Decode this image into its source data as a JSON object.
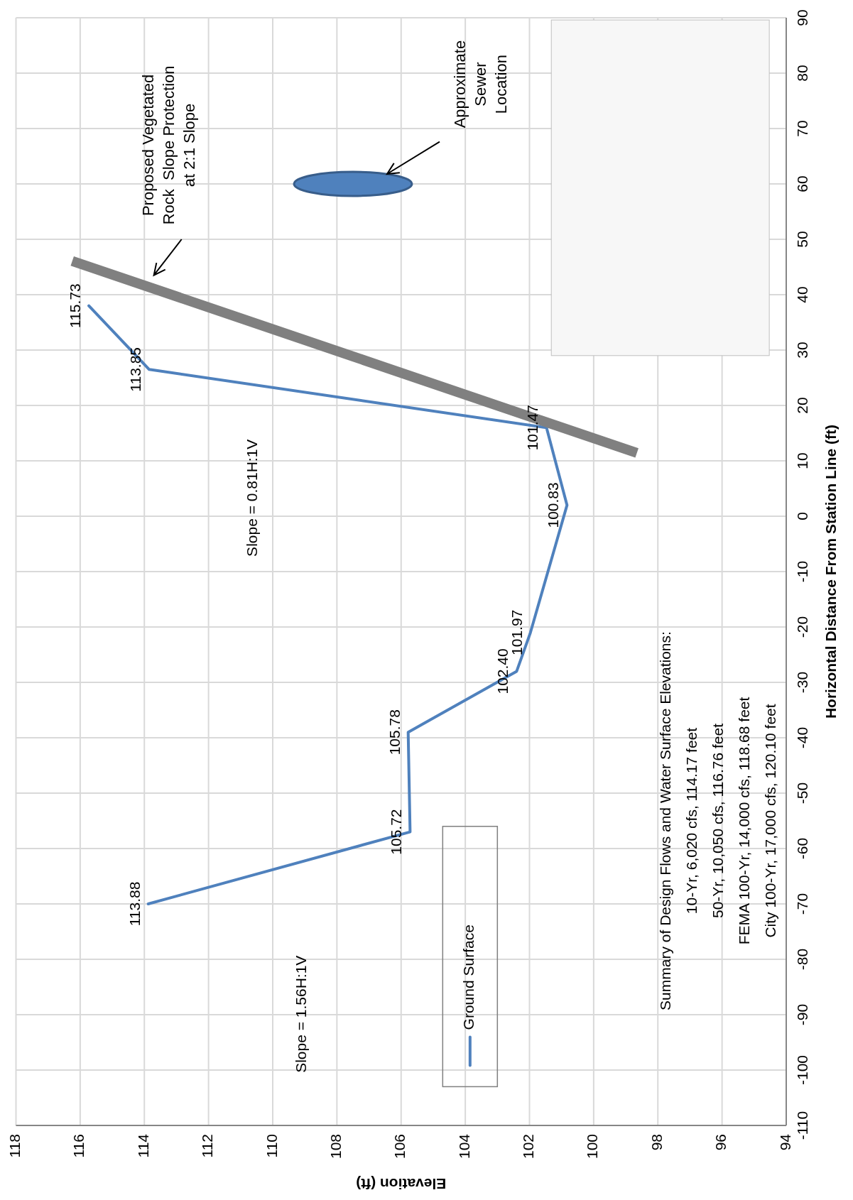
{
  "chart_data": {
    "type": "line",
    "xlabel": "Elevation (ft)",
    "ylabel": "Horizontal Distance From Station Line (ft)",
    "xlim": [
      118,
      94
    ],
    "xticks": [
      118,
      116,
      114,
      112,
      110,
      108,
      106,
      104,
      102,
      100,
      98,
      96,
      94
    ],
    "ylim": [
      -110,
      90
    ],
    "yticks": [
      -110,
      -100,
      -90,
      -80,
      -70,
      -60,
      -50,
      -40,
      -30,
      -20,
      -10,
      0,
      10,
      20,
      30,
      40,
      50,
      60,
      70,
      80,
      90
    ],
    "grid": true,
    "legend": "bottom",
    "series": [
      {
        "name": "Ground Surface",
        "color": "#4f81bd",
        "x": [
          113.88,
          105.72,
          105.78,
          102.4,
          101.97,
          100.83,
          101.47,
          113.85,
          115.73
        ],
        "values": [
          -70,
          -57,
          -39,
          -28,
          -21,
          2,
          16,
          26.5,
          38
        ]
      },
      {
        "type": "line",
        "color": "#808080",
        "x": [
          98.8,
          116.1
        ],
        "values": [
          11.7,
          45.8
        ]
      }
    ],
    "annotations": [
      "Slope = 1.56H:1V",
      "Slope = 0.81H:1V",
      "Proposed Vegetated\nRock  Slope Protection\nat 2:1 Slope",
      "Approximate\nSewer\nLocation",
      "Summary of Design Flows and Water Surface Elevations:",
      "10-Yr, 6,020 cfs, 114.17 feet",
      "50-Yr, 10,050 cfs, 116.76 feet",
      "FEMA 100-Yr, 14,000 cfs, 118.68 feet",
      "City 100-Yr, 17,000 cfs, 120.10 feet",
      {
        "text": "113.88",
        "x": 113.88,
        "y": -70
      },
      {
        "text": "105.72",
        "x": 105.72,
        "y": -57
      },
      {
        "text": "105.78",
        "x": 105.78,
        "y": -39
      },
      {
        "text": "102.40",
        "x": 102.4,
        "y": -28
      },
      {
        "text": "101.97",
        "x": 101.97,
        "y": -21
      },
      {
        "text": "100.83",
        "x": 100.83,
        "y": 2
      },
      {
        "text": "101.47",
        "x": 101.47,
        "y": 16
      },
      {
        "text": "113.85",
        "x": 113.85,
        "y": 26.5
      },
      {
        "text": "115.73",
        "x": 115.73,
        "y": 38
      }
    ]
  }
}
